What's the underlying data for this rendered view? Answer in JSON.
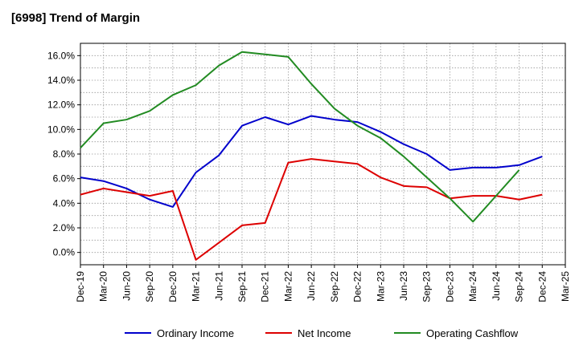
{
  "chart_data": {
    "type": "line",
    "title": "[6998]  Trend of Margin",
    "categories": [
      "Dec-19",
      "Mar-20",
      "Jun-20",
      "Sep-20",
      "Dec-20",
      "Mar-21",
      "Jun-21",
      "Sep-21",
      "Dec-21",
      "Mar-22",
      "Jun-22",
      "Sep-22",
      "Dec-22",
      "Mar-23",
      "Jun-23",
      "Sep-23",
      "Dec-23",
      "Mar-24",
      "Jun-24",
      "Sep-24",
      "Dec-24",
      "Mar-25"
    ],
    "y_ticks": [
      0,
      2,
      4,
      6,
      8,
      10,
      12,
      14,
      16
    ],
    "y_tick_labels": [
      "0.0%",
      "2.0%",
      "4.0%",
      "6.0%",
      "8.0%",
      "10.0%",
      "12.0%",
      "14.0%",
      "16.0%"
    ],
    "ylim": [
      -1.0,
      17.0
    ],
    "grid": true,
    "legend_position": "bottom",
    "series": [
      {
        "name": "Ordinary Income",
        "color": "#0000cc",
        "values": [
          6.1,
          5.8,
          5.2,
          4.3,
          3.7,
          6.5,
          7.9,
          10.3,
          11.0,
          10.4,
          11.1,
          10.8,
          10.6,
          9.8,
          8.8,
          8.0,
          6.7,
          6.9,
          6.9,
          7.1,
          7.8,
          null
        ]
      },
      {
        "name": "Net Income",
        "color": "#dd0000",
        "values": [
          4.7,
          5.2,
          4.9,
          4.6,
          5.0,
          -0.6,
          0.8,
          2.2,
          2.4,
          7.3,
          7.6,
          7.4,
          7.2,
          6.1,
          5.4,
          5.3,
          4.4,
          4.6,
          4.6,
          4.3,
          4.7,
          null
        ]
      },
      {
        "name": "Operating Cashflow",
        "color": "#228b22",
        "values": [
          8.5,
          10.5,
          10.8,
          11.5,
          12.8,
          13.6,
          15.2,
          16.3,
          16.1,
          15.9,
          13.7,
          11.7,
          10.3,
          9.3,
          7.8,
          6.1,
          4.4,
          2.5,
          4.6,
          6.7,
          null,
          null
        ]
      }
    ]
  }
}
